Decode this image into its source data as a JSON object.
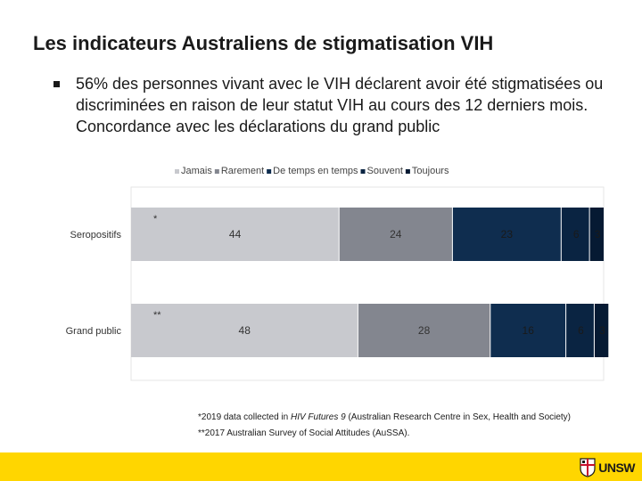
{
  "slide": {
    "title": "Les indicateurs Australiens de stigmatisation VIH",
    "bullet": "56% des personnes vivant avec le VIH déclarent avoir été stigmatisées ou discriminées en raison de leur statut VIH au cours des 12 derniers mois. Concordance avec les déclarations du grand public"
  },
  "chart_data": {
    "type": "bar",
    "orientation": "horizontal",
    "stacked": true,
    "legend_position": "top",
    "categories": [
      "Seropositifs",
      "Grand public"
    ],
    "category_markers": [
      "*",
      "**"
    ],
    "series": [
      {
        "name": "Jamais",
        "values": [
          44,
          48
        ],
        "color": "#c8c9ce",
        "label_color": "#333333"
      },
      {
        "name": "Rarement",
        "values": [
          24,
          28
        ],
        "color": "#83868f",
        "label_color": "#333333"
      },
      {
        "name": "De temps en temps",
        "values": [
          23,
          16
        ],
        "color": "#0f2d4f",
        "label_color": "#1a1a1a"
      },
      {
        "name": "Souvent",
        "values": [
          6,
          6
        ],
        "color": "#0a2442",
        "label_color": "#1a1a1a"
      },
      {
        "name": "Toujours",
        "values": [
          3,
          3
        ],
        "color": "#061a33",
        "label_color": "#1a1a1a"
      }
    ],
    "xlim": [
      0,
      100
    ],
    "title": "",
    "xlabel": "",
    "ylabel": ""
  },
  "footnotes": {
    "line1_prefix": "*2019 data collected in ",
    "line1_italic": "HIV Futures 9",
    "line1_suffix": " (Australian Research Centre in Sex, Health and Society)",
    "line2": "**2017 Australian Survey of Social Attitudes (AuSSA)."
  },
  "logo": {
    "text": "UNSW",
    "icon": "crest-icon",
    "color": "#ffd600"
  }
}
